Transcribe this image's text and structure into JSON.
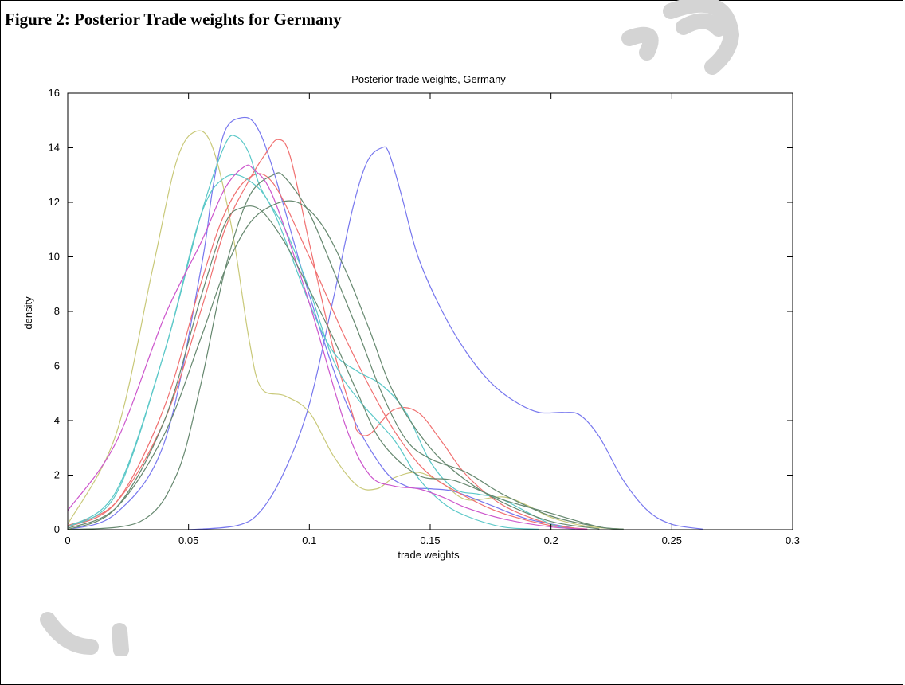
{
  "figure": {
    "caption": "Figure 2: Posterior Trade weights for Germany"
  },
  "chart_data": {
    "type": "line",
    "title": "Posterior trade weights, Germany",
    "xlabel": "trade weights",
    "ylabel": "density",
    "xlim": [
      0,
      0.3
    ],
    "ylim": [
      0,
      16
    ],
    "xticks": [
      0,
      0.05,
      0.1,
      0.15,
      0.2,
      0.25,
      0.3
    ],
    "xtick_labels": [
      "0",
      "0.05",
      "0.1",
      "0.15",
      "0.2",
      "0.25",
      "0.3"
    ],
    "yticks": [
      0,
      2,
      4,
      6,
      8,
      10,
      12,
      14,
      16
    ],
    "ytick_labels": [
      "0",
      "2",
      "4",
      "6",
      "8",
      "10",
      "12",
      "14",
      "16"
    ],
    "grid": false,
    "legend": "none",
    "series": [
      {
        "color": "#c9c97a",
        "x": [
          0,
          0.02,
          0.035,
          0.045,
          0.053,
          0.06,
          0.068,
          0.075,
          0.08,
          0.09,
          0.1,
          0.11,
          0.12,
          0.128,
          0.135,
          0.145,
          0.155,
          0.165,
          0.18,
          0.19,
          0.2,
          0.215,
          0.23
        ],
        "y": [
          0.2,
          3.5,
          9.5,
          13.5,
          14.6,
          14,
          11,
          7,
          5.2,
          4.9,
          4.3,
          2.7,
          1.6,
          1.5,
          1.9,
          2.1,
          1.7,
          1.1,
          1.2,
          0.9,
          0.45,
          0.12,
          0.02
        ]
      },
      {
        "color": "#7777ee",
        "x": [
          0,
          0.02,
          0.04,
          0.055,
          0.06,
          0.065,
          0.072,
          0.078,
          0.085,
          0.1,
          0.115,
          0.13,
          0.14,
          0.15,
          0.16,
          0.175,
          0.19,
          0.21
        ],
        "y": [
          0,
          0.6,
          3.2,
          9.5,
          12.5,
          14.6,
          15.1,
          14.8,
          13.2,
          8.6,
          4.7,
          2.3,
          1.6,
          1.5,
          1.4,
          0.9,
          0.4,
          0.05
        ]
      },
      {
        "color": "#7777ee",
        "x": [
          0.05,
          0.07,
          0.08,
          0.09,
          0.1,
          0.11,
          0.118,
          0.124,
          0.13,
          0.133,
          0.138,
          0.145,
          0.155,
          0.165,
          0.175,
          0.185,
          0.195,
          0.205,
          0.212,
          0.22,
          0.23,
          0.24,
          0.25,
          0.263
        ],
        "y": [
          0,
          0.15,
          0.7,
          2.2,
          4.6,
          8.5,
          11.8,
          13.5,
          14,
          13.8,
          12.3,
          10,
          8,
          6.5,
          5.4,
          4.7,
          4.3,
          4.3,
          4.2,
          3.4,
          1.8,
          0.7,
          0.2,
          0.02
        ]
      },
      {
        "color": "#f07070",
        "x": [
          0,
          0.02,
          0.04,
          0.055,
          0.065,
          0.075,
          0.082,
          0.087,
          0.092,
          0.1,
          0.11,
          0.118,
          0.12,
          0.125,
          0.135,
          0.145,
          0.155,
          0.165,
          0.18,
          0.2,
          0.215
        ],
        "y": [
          0.15,
          1,
          4,
          8,
          11,
          12.8,
          13.8,
          14.3,
          13.7,
          10.5,
          6.6,
          4.2,
          3.6,
          3.5,
          4.4,
          4.3,
          3.2,
          2,
          0.9,
          0.2,
          0.02
        ]
      },
      {
        "color": "#f07070",
        "x": [
          0,
          0.02,
          0.04,
          0.055,
          0.065,
          0.075,
          0.085,
          0.1,
          0.115,
          0.13,
          0.14,
          0.15,
          0.165,
          0.18,
          0.2,
          0.215
        ],
        "y": [
          0.1,
          1,
          4.5,
          9,
          11.6,
          12.9,
          12.7,
          10,
          7,
          4.4,
          3,
          2,
          1.2,
          0.6,
          0.15,
          0.02
        ]
      },
      {
        "color": "#5bc8c8",
        "x": [
          0,
          0.02,
          0.04,
          0.055,
          0.065,
          0.07,
          0.075,
          0.08,
          0.09,
          0.1,
          0.11,
          0.12,
          0.135,
          0.145,
          0.155,
          0.165,
          0.18,
          0.195
        ],
        "y": [
          0.1,
          1.4,
          6.5,
          11.5,
          14.1,
          14.4,
          13.8,
          12.5,
          11,
          8.8,
          6.2,
          4.8,
          3.3,
          1.9,
          1,
          0.5,
          0.1,
          0.02
        ]
      },
      {
        "color": "#5bc8c8",
        "x": [
          0,
          0.02,
          0.04,
          0.055,
          0.065,
          0.075,
          0.085,
          0.1,
          0.11,
          0.12,
          0.13,
          0.14,
          0.15,
          0.16,
          0.17,
          0.18,
          0.2,
          0.21
        ],
        "y": [
          0.1,
          1.3,
          6.5,
          11.5,
          12.9,
          12.8,
          11.7,
          8.3,
          6.5,
          5.8,
          5.3,
          4.3,
          2.5,
          1.5,
          1.3,
          1.1,
          0.2,
          0.02
        ]
      },
      {
        "color": "#cc55cc",
        "x": [
          0,
          0.02,
          0.04,
          0.055,
          0.065,
          0.073,
          0.077,
          0.085,
          0.1,
          0.115,
          0.125,
          0.135,
          0.145,
          0.155,
          0.165,
          0.18,
          0.2,
          0.215
        ],
        "y": [
          0.7,
          3.2,
          7.8,
          10.5,
          12.5,
          13.3,
          13.2,
          12.2,
          8.3,
          3.8,
          2,
          1.6,
          1.5,
          1.2,
          0.8,
          0.4,
          0.1,
          0.02
        ]
      },
      {
        "color": "#66886f",
        "x": [
          0,
          0.02,
          0.04,
          0.055,
          0.065,
          0.072,
          0.08,
          0.09,
          0.1,
          0.11,
          0.12,
          0.13,
          0.145,
          0.16,
          0.18,
          0.2,
          0.22,
          0.23
        ],
        "y": [
          0,
          0.8,
          4,
          8.5,
          11.2,
          11.8,
          11.7,
          10.5,
          8.8,
          7,
          5,
          3.2,
          2,
          1.8,
          1.1,
          0.6,
          0.1,
          0.02
        ]
      },
      {
        "color": "#66886f",
        "x": [
          0,
          0.03,
          0.045,
          0.055,
          0.065,
          0.075,
          0.085,
          0.09,
          0.1,
          0.11,
          0.12,
          0.13,
          0.14,
          0.15,
          0.165,
          0.18,
          0.2,
          0.22,
          0.23
        ],
        "y": [
          0,
          0.3,
          2,
          5.3,
          9.5,
          12.2,
          13,
          12.9,
          11.6,
          9.5,
          7.3,
          5,
          3.3,
          2.6,
          2.1,
          1.3,
          0.5,
          0.1,
          0.02
        ]
      },
      {
        "color": "#66886f",
        "x": [
          0,
          0.02,
          0.04,
          0.055,
          0.065,
          0.075,
          0.085,
          0.095,
          0.105,
          0.115,
          0.125,
          0.135,
          0.15,
          0.165,
          0.18,
          0.2,
          0.22
        ],
        "y": [
          0.05,
          0.8,
          3.5,
          7,
          9.5,
          11.2,
          11.9,
          12,
          11.2,
          9.5,
          7.3,
          5,
          3,
          1.8,
          1,
          0.3,
          0.03
        ]
      }
    ]
  }
}
